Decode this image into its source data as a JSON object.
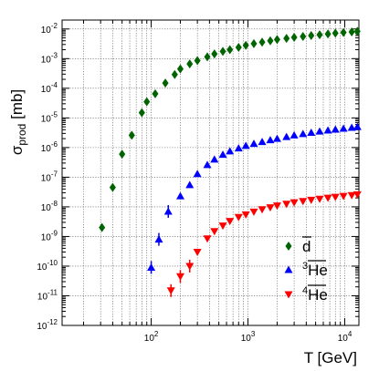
{
  "chart_data": {
    "type": "scatter",
    "title": "",
    "xlabel": "T [GeV]",
    "ylabel_main": "σ",
    "ylabel_sub": "prod",
    "ylabel_unit": " [mb]",
    "x_scale": "log",
    "y_scale": "log",
    "xlim": [
      12,
      14000
    ],
    "ylim": [
      1e-12,
      0.02
    ],
    "grid": true,
    "legend_position": "bottom-right",
    "x_ticks": [
      {
        "value": 100,
        "base": "10",
        "exp": "2"
      },
      {
        "value": 1000,
        "base": "10",
        "exp": "3"
      },
      {
        "value": 10000,
        "base": "10",
        "exp": "4"
      }
    ],
    "y_ticks": [
      {
        "value": 1e-12,
        "base": "10",
        "exp": "-12"
      },
      {
        "value": 1e-11,
        "base": "10",
        "exp": "-11"
      },
      {
        "value": 1e-10,
        "base": "10",
        "exp": "-10"
      },
      {
        "value": 1e-09,
        "base": "10",
        "exp": "-9"
      },
      {
        "value": 1e-08,
        "base": "10",
        "exp": "-8"
      },
      {
        "value": 1e-07,
        "base": "10",
        "exp": "-7"
      },
      {
        "value": 1e-06,
        "base": "10",
        "exp": "-6"
      },
      {
        "value": 1e-05,
        "base": "10",
        "exp": "-5"
      },
      {
        "value": 0.0001,
        "base": "10",
        "exp": "-4"
      },
      {
        "value": 0.001,
        "base": "10",
        "exp": "-3"
      },
      {
        "value": 0.01,
        "base": "10",
        "exp": "-2"
      }
    ],
    "series": [
      {
        "name": "d",
        "marker": "diamond",
        "color": "#006400",
        "points": [
          [
            31,
            2e-09
          ],
          [
            40,
            4.5e-08
          ],
          [
            50,
            6e-07
          ],
          [
            63,
            2.6e-06
          ],
          [
            80,
            1.5e-05
          ],
          [
            90,
            3.5e-05
          ],
          [
            110,
            6.5e-05
          ],
          [
            140,
            0.00015
          ],
          [
            175,
            0.00029
          ],
          [
            200,
            0.00045
          ],
          [
            250,
            0.00066
          ],
          [
            300,
            0.00086
          ],
          [
            380,
            0.00115
          ],
          [
            450,
            0.00145
          ],
          [
            550,
            0.00175
          ],
          [
            650,
            0.002
          ],
          [
            800,
            0.0024
          ],
          [
            950,
            0.0028
          ],
          [
            1150,
            0.0032
          ],
          [
            1400,
            0.0036
          ],
          [
            1700,
            0.004
          ],
          [
            2000,
            0.0044
          ],
          [
            2500,
            0.0048
          ],
          [
            3000,
            0.0052
          ],
          [
            3700,
            0.0056
          ],
          [
            4500,
            0.006
          ],
          [
            5500,
            0.0064
          ],
          [
            6700,
            0.0068
          ],
          [
            8000,
            0.0072
          ],
          [
            9700,
            0.0076
          ],
          [
            11800,
            0.008
          ],
          [
            13500,
            0.0083
          ]
        ]
      },
      {
        "name": "3He",
        "marker": "triangle-up",
        "color": "#0000ff",
        "points": [
          [
            100,
            9e-11
          ],
          [
            120,
            8e-10
          ],
          [
            150,
            7e-09
          ],
          [
            200,
            2.3e-08
          ],
          [
            250,
            5.5e-08
          ],
          [
            300,
            1.3e-07
          ],
          [
            380,
            2.6e-07
          ],
          [
            450,
            4e-07
          ],
          [
            550,
            5.8e-07
          ],
          [
            650,
            7.5e-07
          ],
          [
            800,
            9.5e-07
          ],
          [
            950,
            1.15e-06
          ],
          [
            1150,
            1.35e-06
          ],
          [
            1400,
            1.55e-06
          ],
          [
            1700,
            1.8e-06
          ],
          [
            2000,
            2e-06
          ],
          [
            2500,
            2.3e-06
          ],
          [
            3000,
            2.6e-06
          ],
          [
            3700,
            2.9e-06
          ],
          [
            4500,
            3.2e-06
          ],
          [
            5500,
            3.5e-06
          ],
          [
            6700,
            3.8e-06
          ],
          [
            8000,
            4.1e-06
          ],
          [
            9700,
            4.4e-06
          ],
          [
            11800,
            4.7e-06
          ],
          [
            13500,
            5e-06
          ]
        ]
      },
      {
        "name": "4He",
        "marker": "triangle-down",
        "color": "#ff0000",
        "points": [
          [
            160,
            1.5e-11
          ],
          [
            200,
            4.5e-11
          ],
          [
            250,
            1e-10
          ],
          [
            300,
            3e-10
          ],
          [
            380,
            8.5e-10
          ],
          [
            450,
            1.5e-09
          ],
          [
            550,
            2.3e-09
          ],
          [
            650,
            3.3e-09
          ],
          [
            800,
            4.5e-09
          ],
          [
            950,
            5.5e-09
          ],
          [
            1150,
            6.8e-09
          ],
          [
            1400,
            8.2e-09
          ],
          [
            1700,
            9.5e-09
          ],
          [
            2000,
            1.1e-08
          ],
          [
            2500,
            1.25e-08
          ],
          [
            3000,
            1.4e-08
          ],
          [
            3700,
            1.55e-08
          ],
          [
            4500,
            1.7e-08
          ],
          [
            5500,
            1.85e-08
          ],
          [
            6700,
            2e-08
          ],
          [
            8000,
            2.15e-08
          ],
          [
            9700,
            2.3e-08
          ],
          [
            11800,
            2.45e-08
          ],
          [
            13500,
            2.6e-08
          ]
        ]
      }
    ],
    "legend": [
      {
        "marker": "diamond",
        "color": "#006400",
        "text": "d",
        "sup": "",
        "bar": true
      },
      {
        "marker": "triangle-up",
        "color": "#0000ff",
        "text": "He",
        "sup": "3",
        "bar": true
      },
      {
        "marker": "triangle-down",
        "color": "#ff0000",
        "text": "He",
        "sup": "4",
        "bar": true
      }
    ]
  }
}
